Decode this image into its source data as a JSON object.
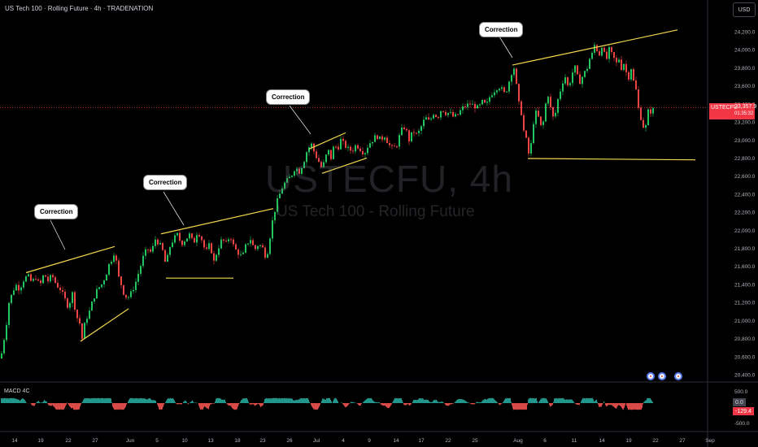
{
  "header": {
    "title": "US Tech 100 · Rolling Future · 4h · TRADENATION",
    "currency": "USD"
  },
  "watermark": {
    "symbol": "USTECFU, 4h",
    "description": "US Tech 100 - Rolling Future"
  },
  "annotations": [
    {
      "text": "Correction"
    },
    {
      "text": "Correction"
    },
    {
      "text": "Correction"
    },
    {
      "text": "Correction"
    }
  ],
  "price_tag": {
    "symbol": "USTECFU",
    "value": "23,357.9",
    "time": "01:35:32"
  },
  "macd": {
    "label": "MACD 4C",
    "ticks": [
      "500.0",
      "-500.0"
    ],
    "zero_tag": "0.0",
    "value_tag": "-129.4"
  },
  "colors": {
    "up": "#26a69a",
    "down": "#ef5350",
    "green": "#22c55e",
    "red": "#ef4444",
    "trend": "#f5d94e",
    "price_tag": "#f23645"
  },
  "icons": [
    "event-flag-icon",
    "event-flag-icon",
    "event-flag-icon"
  ],
  "chart_data": {
    "type": "candlestick",
    "title": "US Tech 100 · Rolling Future · 4h · TRADENATION",
    "ylim": [
      20400,
      24400
    ],
    "y_ticks": [
      "20,400.0",
      "20,600.0",
      "20,800.0",
      "21,000.0",
      "21,200.0",
      "21,400.0",
      "21,600.0",
      "21,800.0",
      "22,000.0",
      "22,200.0",
      "22,400.0",
      "22,600.0",
      "22,800.0",
      "23,000.0",
      "23,200.0",
      "23,400.0",
      "23,600.0",
      "23,800.0",
      "24,000.0",
      "24,200.0"
    ],
    "x_ticks": [
      "14",
      "19",
      "22",
      "27",
      "Jun",
      "5",
      "10",
      "13",
      "18",
      "23",
      "26",
      "Jul",
      "4",
      "9",
      "14",
      "17",
      "22",
      "25",
      "Aug",
      "6",
      "11",
      "14",
      "19",
      "22",
      "27",
      "Sep"
    ],
    "close_path": [
      [
        0,
        20580
      ],
      [
        3,
        20750
      ],
      [
        6,
        20900
      ],
      [
        10,
        21200
      ],
      [
        14,
        21300
      ],
      [
        18,
        21400
      ],
      [
        23,
        21350
      ],
      [
        28,
        21450
      ],
      [
        33,
        21500
      ],
      [
        38,
        21420
      ],
      [
        43,
        21480
      ],
      [
        48,
        21380
      ],
      [
        53,
        21520
      ],
      [
        58,
        21440
      ],
      [
        63,
        21500
      ],
      [
        68,
        21400
      ],
      [
        73,
        21350
      ],
      [
        78,
        21250
      ],
      [
        83,
        21150
      ],
      [
        88,
        21300
      ],
      [
        93,
        21050
      ],
      [
        98,
        20950
      ],
      [
        100,
        20800
      ],
      [
        104,
        21000
      ],
      [
        109,
        21100
      ],
      [
        114,
        21250
      ],
      [
        119,
        21350
      ],
      [
        124,
        21400
      ],
      [
        129,
        21500
      ],
      [
        134,
        21650
      ],
      [
        138,
        21700
      ],
      [
        140,
        21800
      ],
      [
        144,
        21500
      ],
      [
        148,
        21400
      ],
      [
        152,
        21280
      ],
      [
        156,
        21250
      ],
      [
        160,
        21300
      ],
      [
        165,
        21400
      ],
      [
        170,
        21550
      ],
      [
        175,
        21700
      ],
      [
        180,
        21800
      ],
      [
        185,
        21750
      ],
      [
        190,
        21900
      ],
      [
        195,
        21850
      ],
      [
        200,
        21750
      ],
      [
        203,
        21600
      ],
      [
        207,
        21800
      ],
      [
        212,
        21900
      ],
      [
        217,
        21950
      ],
      [
        222,
        21850
      ],
      [
        227,
        21900
      ],
      [
        232,
        21950
      ],
      [
        237,
        21850
      ],
      [
        242,
        22000
      ],
      [
        247,
        21900
      ],
      [
        252,
        21750
      ],
      [
        257,
        21850
      ],
      [
        262,
        21650
      ],
      [
        267,
        21800
      ],
      [
        272,
        21900
      ],
      [
        277,
        21850
      ],
      [
        282,
        21950
      ],
      [
        287,
        21800
      ],
      [
        292,
        21750
      ],
      [
        297,
        21700
      ],
      [
        302,
        21850
      ],
      [
        307,
        21900
      ],
      [
        312,
        21780
      ],
      [
        317,
        21850
      ],
      [
        322,
        21800
      ],
      [
        326,
        21700
      ],
      [
        329,
        21800
      ],
      [
        332,
        22000
      ],
      [
        335,
        22150
      ],
      [
        339,
        22300
      ],
      [
        343,
        22400
      ],
      [
        347,
        22500
      ],
      [
        352,
        22550
      ],
      [
        357,
        22600
      ],
      [
        362,
        22700
      ],
      [
        367,
        22650
      ],
      [
        372,
        22750
      ],
      [
        377,
        22900
      ],
      [
        382,
        22950
      ],
      [
        386,
        22850
      ],
      [
        390,
        22780
      ],
      [
        394,
        22700
      ],
      [
        398,
        22750
      ],
      [
        402,
        22900
      ],
      [
        406,
        22800
      ],
      [
        410,
        22950
      ],
      [
        414,
        22900
      ],
      [
        418,
        23000
      ],
      [
        422,
        22950
      ],
      [
        427,
        22900
      ],
      [
        432,
        22880
      ],
      [
        437,
        22950
      ],
      [
        442,
        22900
      ],
      [
        447,
        22850
      ],
      [
        452,
        22950
      ],
      [
        457,
        23000
      ],
      [
        462,
        23050
      ],
      [
        467,
        23000
      ],
      [
        472,
        23050
      ],
      [
        477,
        22950
      ],
      [
        482,
        22900
      ],
      [
        487,
        22950
      ],
      [
        492,
        23100
      ],
      [
        497,
        23150
      ],
      [
        502,
        23000
      ],
      [
        507,
        23100
      ],
      [
        512,
        23050
      ],
      [
        517,
        23150
      ],
      [
        522,
        23250
      ],
      [
        527,
        23200
      ],
      [
        532,
        23300
      ],
      [
        537,
        23250
      ],
      [
        542,
        23350
      ],
      [
        547,
        23300
      ],
      [
        552,
        23300
      ],
      [
        557,
        23250
      ],
      [
        562,
        23280
      ],
      [
        567,
        23350
      ],
      [
        572,
        23380
      ],
      [
        577,
        23400
      ],
      [
        582,
        23380
      ],
      [
        587,
        23350
      ],
      [
        592,
        23420
      ],
      [
        597,
        23380
      ],
      [
        602,
        23500
      ],
      [
        607,
        23550
      ],
      [
        612,
        23600
      ],
      [
        617,
        23550
      ],
      [
        620,
        23500
      ],
      [
        624,
        23620
      ],
      [
        628,
        23750
      ],
      [
        631,
        23800
      ],
      [
        634,
        23600
      ],
      [
        637,
        23400
      ],
      [
        640,
        23300
      ],
      [
        643,
        23100
      ],
      [
        646,
        23000
      ],
      [
        649,
        22850
      ],
      [
        652,
        22950
      ],
      [
        655,
        23200
      ],
      [
        658,
        23300
      ],
      [
        661,
        23250
      ],
      [
        664,
        23150
      ],
      [
        667,
        23200
      ],
      [
        670,
        23400
      ],
      [
        673,
        23500
      ],
      [
        676,
        23350
      ],
      [
        679,
        23250
      ],
      [
        682,
        23300
      ],
      [
        685,
        23450
      ],
      [
        688,
        23550
      ],
      [
        691,
        23650
      ],
      [
        694,
        23700
      ],
      [
        697,
        23600
      ],
      [
        700,
        23650
      ],
      [
        703,
        23750
      ],
      [
        706,
        23800
      ],
      [
        709,
        23700
      ],
      [
        712,
        23650
      ],
      [
        715,
        23700
      ],
      [
        718,
        23750
      ],
      [
        721,
        23800
      ],
      [
        724,
        23900
      ],
      [
        727,
        23950
      ],
      [
        730,
        24050
      ],
      [
        733,
        24000
      ],
      [
        736,
        23950
      ],
      [
        739,
        24050
      ],
      [
        742,
        23950
      ],
      [
        745,
        23900
      ],
      [
        748,
        24000
      ],
      [
        751,
        23950
      ],
      [
        754,
        23900
      ],
      [
        757,
        23850
      ],
      [
        760,
        23900
      ],
      [
        763,
        23800
      ],
      [
        766,
        23850
      ],
      [
        769,
        23750
      ],
      [
        772,
        23700
      ],
      [
        775,
        23800
      ],
      [
        778,
        23650
      ],
      [
        781,
        23550
      ],
      [
        784,
        23350
      ],
      [
        787,
        23250
      ],
      [
        790,
        23150
      ],
      [
        792,
        23050
      ],
      [
        794,
        23250
      ],
      [
        797,
        23350
      ],
      [
        800,
        23300
      ],
      [
        803,
        23350
      ]
    ],
    "trendlines": [
      {
        "from": [
          0.16,
          21430
        ],
        "to": [
          0.14,
          21815
        ]
      },
      {
        "from": [
          0.098,
          20750
        ],
        "to": [
          0.158,
          21120
        ]
      },
      {
        "from": [
          0.198,
          21940
        ],
        "to": [
          0.335,
          22220
        ]
      },
      {
        "from": [
          0.205,
          21460
        ],
        "to": [
          0.287,
          21460
        ]
      },
      {
        "from": [
          0.38,
          22900
        ],
        "to": [
          0.425,
          23070
        ]
      },
      {
        "from": [
          0.395,
          22620
        ],
        "to": [
          0.45,
          22790
        ]
      },
      {
        "from": [
          0.63,
          23830
        ],
        "to": [
          0.83,
          24220
        ]
      },
      {
        "from": [
          0.648,
          22790
        ],
        "to": [
          0.855,
          22780
        ]
      }
    ]
  }
}
